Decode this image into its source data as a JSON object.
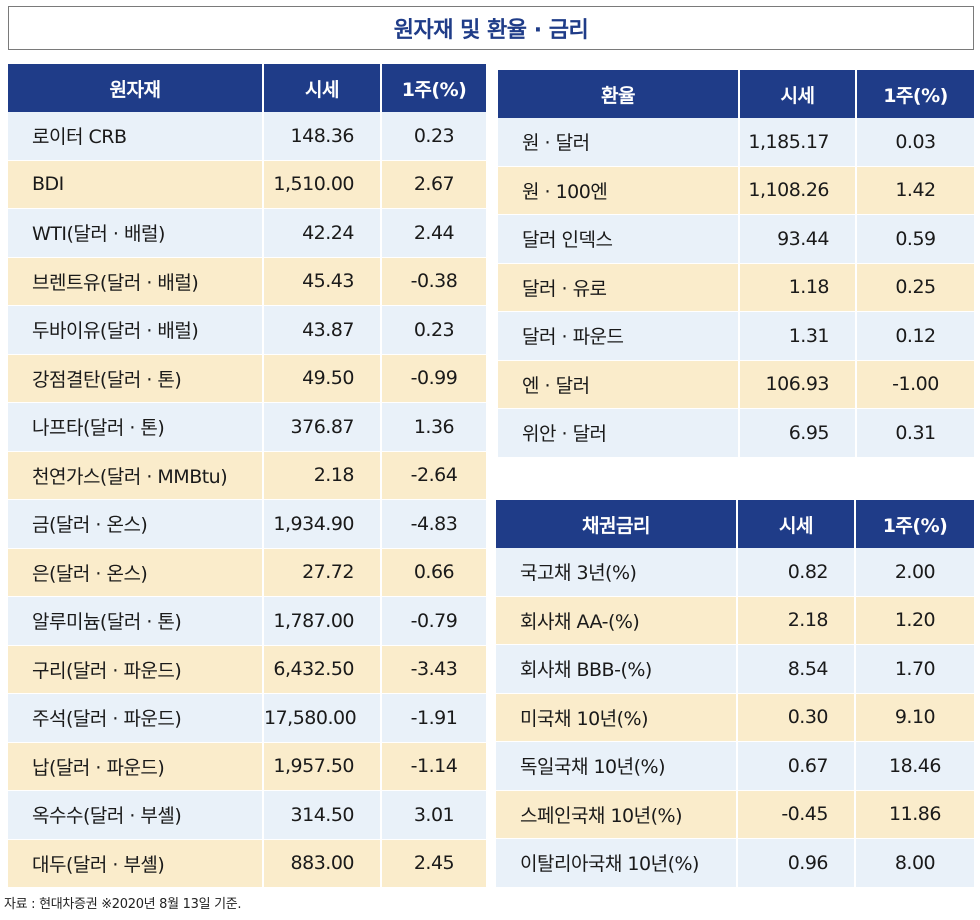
{
  "title": "원자재 및 환율 · 금리",
  "commodities": {
    "headers": [
      "원자재",
      "시세",
      "1주(%)"
    ],
    "rows": [
      {
        "name": "로이터 CRB",
        "price": "148.36",
        "week": "0.23"
      },
      {
        "name": "BDI",
        "price": "1,510.00",
        "week": "2.67"
      },
      {
        "name": "WTI(달러 · 배럴)",
        "price": "42.24",
        "week": "2.44"
      },
      {
        "name": "브렌트유(달러 · 배럴)",
        "price": "45.43",
        "week": "-0.38"
      },
      {
        "name": "두바이유(달러 · 배럴)",
        "price": "43.87",
        "week": "0.23"
      },
      {
        "name": "강점결탄(달러 · 톤)",
        "price": "49.50",
        "week": "-0.99"
      },
      {
        "name": "나프타(달러 · 톤)",
        "price": "376.87",
        "week": "1.36"
      },
      {
        "name": "천연가스(달러 · MMBtu)",
        "price": "2.18",
        "week": "-2.64"
      },
      {
        "name": "금(달러 · 온스)",
        "price": "1,934.90",
        "week": "-4.83"
      },
      {
        "name": "은(달러 · 온스)",
        "price": "27.72",
        "week": "0.66"
      },
      {
        "name": "알루미늄(달러 · 톤)",
        "price": "1,787.00",
        "week": "-0.79"
      },
      {
        "name": "구리(달러 · 파운드)",
        "price": "6,432.50",
        "week": "-3.43"
      },
      {
        "name": "주석(달러 · 파운드)",
        "price": "17,580.00",
        "week": "-1.91"
      },
      {
        "name": "납(달러 · 파운드)",
        "price": "1,957.50",
        "week": "-1.14"
      },
      {
        "name": "옥수수(달러 · 부셸)",
        "price": "314.50",
        "week": "3.01"
      },
      {
        "name": "대두(달러 · 부셸)",
        "price": "883.00",
        "week": "2.45"
      }
    ]
  },
  "exchange": {
    "headers": [
      "환율",
      "시세",
      "1주(%)"
    ],
    "rows": [
      {
        "name": "원 · 달러",
        "price": "1,185.17",
        "week": "0.03"
      },
      {
        "name": "원 · 100엔",
        "price": "1,108.26",
        "week": "1.42"
      },
      {
        "name": "달러 인덱스",
        "price": "93.44",
        "week": "0.59"
      },
      {
        "name": "달러 · 유로",
        "price": "1.18",
        "week": "0.25"
      },
      {
        "name": "달러 · 파운드",
        "price": "1.31",
        "week": "0.12"
      },
      {
        "name": "엔 · 달러",
        "price": "106.93",
        "week": "-1.00"
      },
      {
        "name": "위안 · 달러",
        "price": "6.95",
        "week": "0.31"
      }
    ]
  },
  "bonds": {
    "headers": [
      "채권금리",
      "시세",
      "1주(%)"
    ],
    "rows": [
      {
        "name": "국고채 3년(%)",
        "price": "0.82",
        "week": "2.00"
      },
      {
        "name": "회사채 AA-(%)",
        "price": "2.18",
        "week": "1.20"
      },
      {
        "name": "회사채 BBB-(%)",
        "price": "8.54",
        "week": "1.70"
      },
      {
        "name": "미국채 10년(%)",
        "price": "0.30",
        "week": "9.10"
      },
      {
        "name": "독일국채 10년(%)",
        "price": "0.67",
        "week": "18.46"
      },
      {
        "name": "스페인국채 10년(%)",
        "price": "-0.45",
        "week": "11.86"
      },
      {
        "name": "이탈리아국채 10년(%)",
        "price": "0.96",
        "week": "8.00"
      }
    ]
  },
  "footnote": "자료 : 현대차증권 ※2020년 8월 13일 기준."
}
